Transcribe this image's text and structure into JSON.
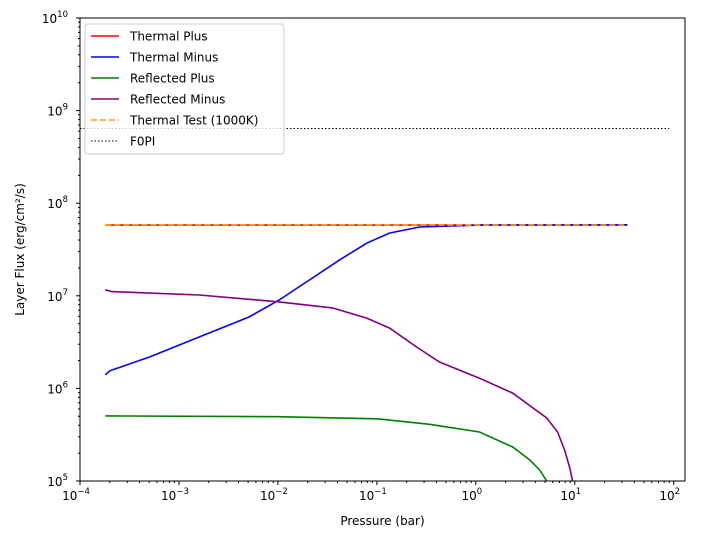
{
  "chart_data": {
    "type": "line",
    "title": "",
    "xlabel": "Pressure (bar)",
    "ylabel": "Layer Flux (erg/cm²/s)",
    "xscale": "log",
    "yscale": "log",
    "xlim": [
      0.0001,
      130
    ],
    "ylim": [
      100000,
      10000000000
    ],
    "x_tick_exponents": [
      -4,
      -3,
      -2,
      -1,
      0,
      1,
      2
    ],
    "y_tick_exponents": [
      5,
      6,
      7,
      8,
      9,
      10
    ],
    "grid": false,
    "legend_position": "upper-left",
    "series": [
      {
        "name": "Thermal Plus",
        "color": "#ff0000",
        "style": "solid",
        "x": [
          0.00018,
          34
        ],
        "y": [
          58000000,
          58000000
        ]
      },
      {
        "name": "Thermal Minus",
        "color": "#0000ff",
        "style": "solid",
        "x": [
          0.00018,
          0.0002,
          0.0005,
          0.0016,
          0.0051,
          0.0103,
          0.0208,
          0.042,
          0.079,
          0.134,
          0.27,
          1.09,
          34
        ],
        "y": [
          1400000,
          1550000,
          2180000,
          3590000,
          5900000,
          9000000,
          14800000,
          24400000,
          37000000,
          47600000,
          55300000,
          58000000,
          58500000
        ]
      },
      {
        "name": "Reflected Plus",
        "color": "#008000",
        "style": "solid",
        "x": [
          0.00018,
          0.01,
          0.1,
          0.34,
          1.09,
          2.36,
          3.5,
          4.43,
          5.2
        ],
        "y": [
          505000,
          495000,
          470000,
          410000,
          338000,
          233000,
          169000,
          131000,
          100000
        ]
      },
      {
        "name": "Reflected Minus",
        "color": "#800080",
        "style": "solid",
        "x": [
          0.00018,
          0.00021,
          0.0016,
          0.0103,
          0.0356,
          0.079,
          0.134,
          0.252,
          0.43,
          1.09,
          2.36,
          5.2,
          6.7,
          7.9,
          8.9,
          9.5
        ],
        "y": [
          11600000,
          11100000,
          10200000,
          8600000,
          7400000,
          5750000,
          4490000,
          2800000,
          1930000,
          1290000,
          890000,
          479000,
          338000,
          216000,
          138000,
          100000
        ]
      },
      {
        "name": "Thermal Test (1000K)",
        "color": "#ffa500",
        "style": "dashed",
        "x": [
          0.00018,
          34
        ],
        "y": [
          58000000,
          58000000
        ]
      },
      {
        "name": "F0PI",
        "color": "#000000",
        "style": "dotted",
        "x": [
          0.0001,
          90
        ],
        "y": [
          640000000,
          640000000
        ]
      }
    ]
  }
}
